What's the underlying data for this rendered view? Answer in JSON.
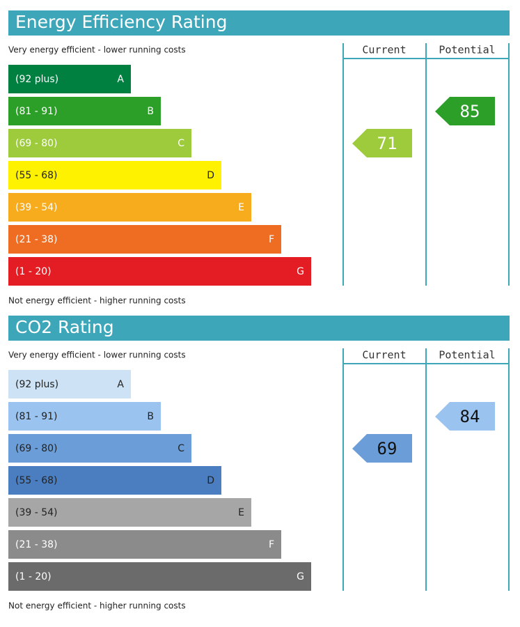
{
  "sections": [
    {
      "title": "Energy Efficiency Rating",
      "top_note": "Very energy efficient - lower running costs",
      "bottom_note": "Not energy efficient - higher running costs",
      "columns": [
        "Current",
        "Potential"
      ],
      "arrow_text_color": "#ffffff",
      "bands": [
        {
          "range": "(92 plus)",
          "letter": "A",
          "color": "#008040",
          "text_color": "#ffffff"
        },
        {
          "range": "(81 - 91)",
          "letter": "B",
          "color": "#2c9f29",
          "text_color": "#ffffff"
        },
        {
          "range": "(69 - 80)",
          "letter": "C",
          "color": "#9dcb3c",
          "text_color": "#ffffff"
        },
        {
          "range": "(55 - 68)",
          "letter": "D",
          "color": "#fff200",
          "text_color": "#222222"
        },
        {
          "range": "(39 - 54)",
          "letter": "E",
          "color": "#f7ac1e",
          "text_color": "#ffffff"
        },
        {
          "range": "(21 - 38)",
          "letter": "F",
          "color": "#ef6d22",
          "text_color": "#ffffff"
        },
        {
          "range": "(1 - 20)",
          "letter": "G",
          "color": "#e31d23",
          "text_color": "#ffffff"
        }
      ],
      "current": 71,
      "potential": 85
    },
    {
      "title": "CO2 Rating",
      "top_note": "Very energy efficient - lower running costs",
      "bottom_note": "Not energy efficient - higher running costs",
      "columns": [
        "Current",
        "Potential"
      ],
      "arrow_text_color": "#111111",
      "bands": [
        {
          "range": "(92 plus)",
          "letter": "A",
          "color": "#cde3f5",
          "text_color": "#222222"
        },
        {
          "range": "(81 - 91)",
          "letter": "B",
          "color": "#9ac3ef",
          "text_color": "#222222"
        },
        {
          "range": "(69 - 80)",
          "letter": "C",
          "color": "#6b9ed8",
          "text_color": "#222222"
        },
        {
          "range": "(55 - 68)",
          "letter": "D",
          "color": "#4a7ec0",
          "text_color": "#222222"
        },
        {
          "range": "(39 - 54)",
          "letter": "E",
          "color": "#a6a6a6",
          "text_color": "#222222"
        },
        {
          "range": "(21 - 38)",
          "letter": "F",
          "color": "#8b8b8b",
          "text_color": "#ffffff"
        },
        {
          "range": "(1 - 20)",
          "letter": "G",
          "color": "#6b6b6b",
          "text_color": "#ffffff"
        }
      ],
      "current": 69,
      "potential": 84
    }
  ]
}
